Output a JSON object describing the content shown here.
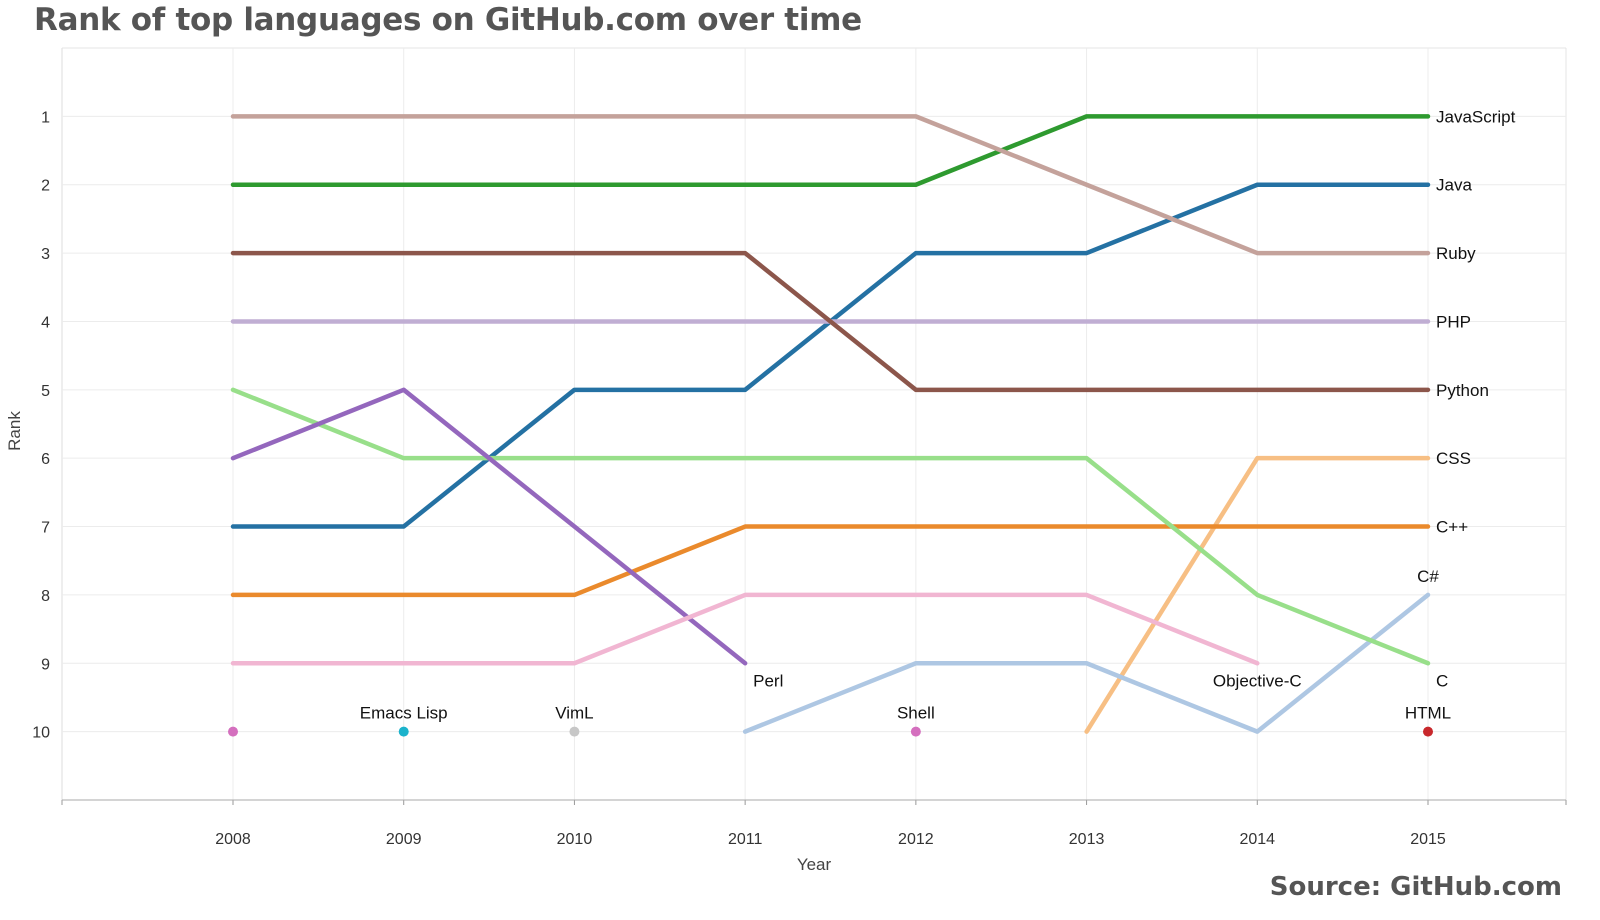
{
  "chart_data": {
    "type": "line",
    "title": "Rank of top languages on GitHub.com over time",
    "source": "Source: GitHub.com",
    "xlabel": "Year",
    "ylabel": "Rank",
    "x": [
      2008,
      2009,
      2010,
      2011,
      2012,
      2013,
      2014,
      2015
    ],
    "x_ticks": [
      "2008",
      "2009",
      "2010",
      "2011",
      "2012",
      "2013",
      "2014",
      "2015"
    ],
    "y_ticks": [
      "1",
      "2",
      "3",
      "4",
      "5",
      "6",
      "7",
      "8",
      "9",
      "10"
    ],
    "ylim": [
      11,
      0
    ],
    "y_inverted": true,
    "grid": true,
    "legend": "labels at line ends",
    "series": [
      {
        "name": "JavaScript",
        "color": "#2e9a2f",
        "values": [
          2,
          2,
          2,
          2,
          2,
          1,
          1,
          1
        ]
      },
      {
        "name": "Java",
        "color": "#2471a3",
        "values": [
          7,
          7,
          5,
          5,
          3,
          3,
          2,
          2
        ]
      },
      {
        "name": "Ruby",
        "color": "#c4a29b",
        "values": [
          1,
          1,
          1,
          1,
          1,
          2,
          3,
          3
        ]
      },
      {
        "name": "PHP",
        "color": "#c0aed3",
        "values": [
          4,
          4,
          4,
          4,
          4,
          4,
          4,
          4
        ]
      },
      {
        "name": "Python",
        "color": "#8c564b",
        "values": [
          3,
          3,
          3,
          3,
          5,
          5,
          5,
          5
        ]
      },
      {
        "name": "CSS",
        "color": "#f7bf84",
        "values": [
          null,
          null,
          null,
          null,
          null,
          10,
          6,
          6
        ]
      },
      {
        "name": "C++",
        "color": "#ea8a2c",
        "values": [
          8,
          8,
          8,
          7,
          7,
          7,
          7,
          7
        ]
      },
      {
        "name": "C#",
        "color": "#aec7e3",
        "values": [
          null,
          null,
          null,
          10,
          9,
          9,
          10,
          8
        ]
      },
      {
        "name": "C",
        "color": "#98df8a",
        "values": [
          5,
          6,
          6,
          6,
          6,
          6,
          8,
          9
        ]
      },
      {
        "name": "Perl",
        "color": "#9467bd",
        "values": [
          6,
          5,
          7,
          9,
          null,
          null,
          null,
          null
        ]
      },
      {
        "name": "Objective-C",
        "color": "#f1b6d2",
        "values": [
          9,
          9,
          9,
          8,
          8,
          8,
          9,
          null
        ]
      },
      {
        "name": "Emacs Lisp",
        "color": "#1bb3cc",
        "values": [
          null,
          10,
          null,
          null,
          null,
          null,
          null,
          null
        ]
      },
      {
        "name": "VimL",
        "color": "#c7c7c7",
        "values": [
          null,
          null,
          10,
          null,
          null,
          null,
          null,
          null
        ]
      },
      {
        "name": "Shell",
        "color": "#d46fbe",
        "values": [
          10,
          null,
          null,
          null,
          10,
          null,
          null,
          null
        ]
      },
      {
        "name": "HTML",
        "color": "#c8282c",
        "values": [
          null,
          null,
          null,
          null,
          null,
          null,
          null,
          10
        ]
      }
    ]
  }
}
